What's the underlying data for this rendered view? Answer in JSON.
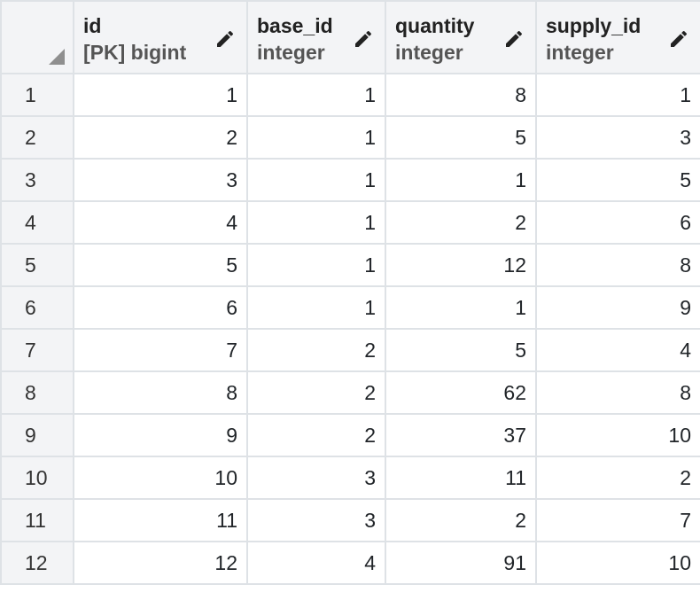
{
  "columns": [
    {
      "name": "id",
      "type": "[PK] bigint",
      "icon": "pencil-icon"
    },
    {
      "name": "base_id",
      "type": "integer",
      "icon": "pencil-icon"
    },
    {
      "name": "quantity",
      "type": "integer",
      "icon": "pencil-icon"
    },
    {
      "name": "supply_id",
      "type": "integer",
      "icon": "pencil-icon"
    }
  ],
  "rows": [
    {
      "row": "1",
      "cells": [
        "1",
        "1",
        "8",
        "1"
      ]
    },
    {
      "row": "2",
      "cells": [
        "2",
        "1",
        "5",
        "3"
      ]
    },
    {
      "row": "3",
      "cells": [
        "3",
        "1",
        "1",
        "5"
      ]
    },
    {
      "row": "4",
      "cells": [
        "4",
        "1",
        "2",
        "6"
      ]
    },
    {
      "row": "5",
      "cells": [
        "5",
        "1",
        "12",
        "8"
      ]
    },
    {
      "row": "6",
      "cells": [
        "6",
        "1",
        "1",
        "9"
      ]
    },
    {
      "row": "7",
      "cells": [
        "7",
        "2",
        "5",
        "4"
      ]
    },
    {
      "row": "8",
      "cells": [
        "8",
        "2",
        "62",
        "8"
      ]
    },
    {
      "row": "9",
      "cells": [
        "9",
        "2",
        "37",
        "10"
      ]
    },
    {
      "row": "10",
      "cells": [
        "10",
        "3",
        "11",
        "2"
      ]
    },
    {
      "row": "11",
      "cells": [
        "11",
        "3",
        "2",
        "7"
      ]
    },
    {
      "row": "12",
      "cells": [
        "12",
        "4",
        "91",
        "10"
      ]
    }
  ]
}
